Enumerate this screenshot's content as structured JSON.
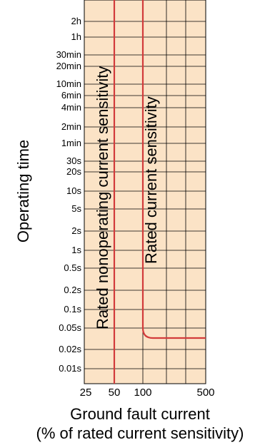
{
  "chart_data": {
    "type": "line",
    "title": "",
    "xlabel": "Ground fault current",
    "xlabel_sub": "(% of rated current sensitivity)",
    "ylabel": "Operating time",
    "x_ticks": [
      "25",
      "50",
      "100",
      "500"
    ],
    "y_ticks": [
      "2h",
      "1h",
      "30min",
      "20min",
      "10min",
      "6min",
      "4min",
      "2min",
      "1min",
      "30s",
      "20s",
      "10s",
      "5s",
      "2s",
      "1s",
      "0.5s",
      "0.2s",
      "0.1s",
      "0.05s",
      "0.02s",
      "0.01s"
    ],
    "annotations": [
      "Rated nonoperating current sensitivity",
      "Rated current sensitivity"
    ],
    "grid": true,
    "background_color": "#fbe3c6",
    "line_color": "#d23b3b",
    "series": [
      {
        "name": "Rated nonoperating current sensitivity",
        "x": [
          50,
          50
        ],
        "y": [
          "0.01s",
          "2h"
        ]
      },
      {
        "name": "Rated current sensitivity",
        "x": [
          100,
          100,
          500
        ],
        "y": [
          "2h",
          "0.05s",
          "0.03s"
        ]
      }
    ]
  }
}
